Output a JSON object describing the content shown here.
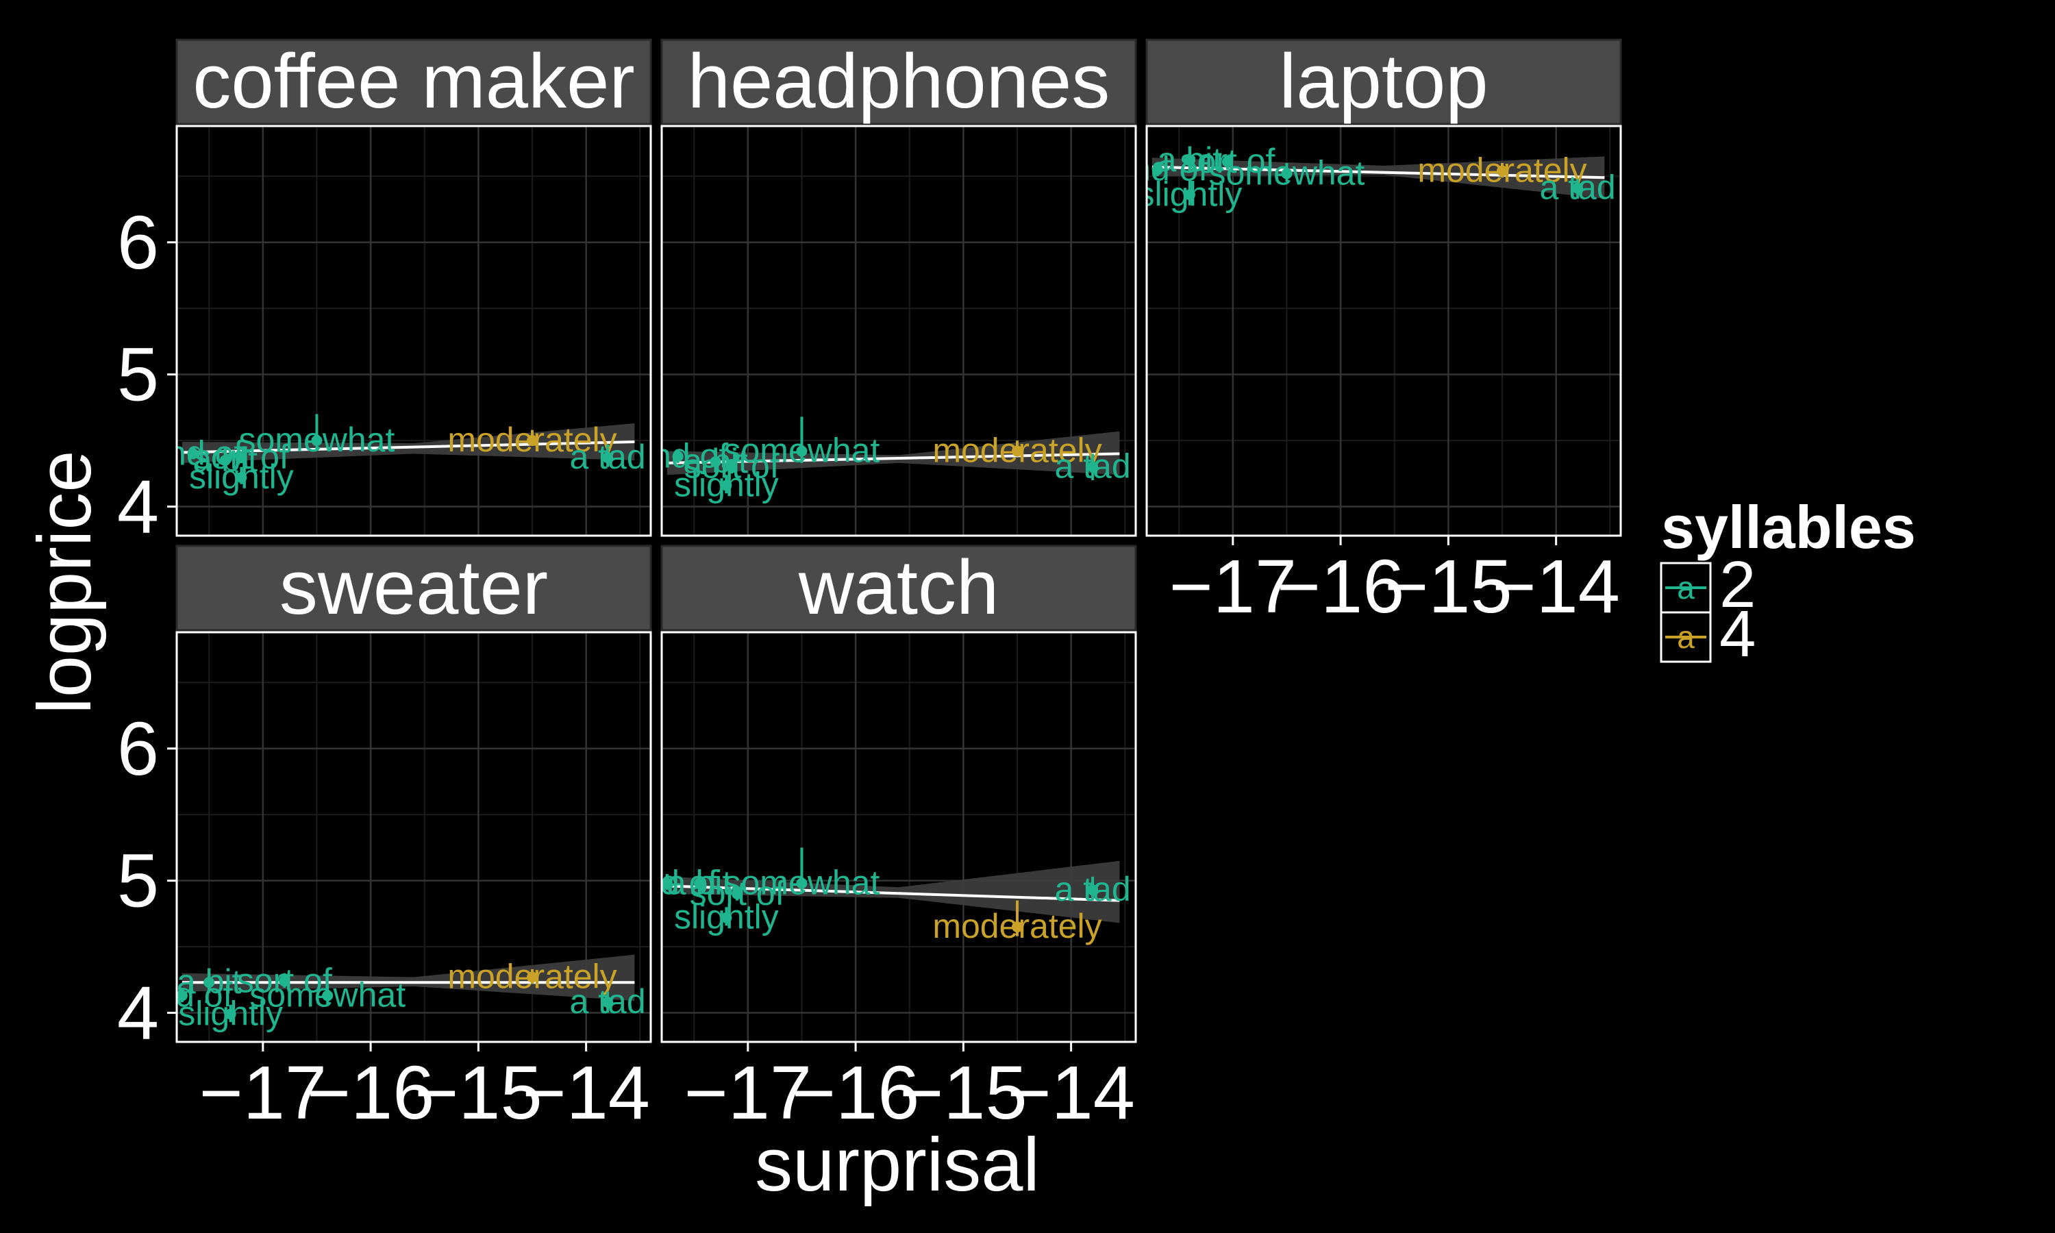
{
  "chart_data": {
    "type": "scatter",
    "xlabel": "surprisal",
    "ylabel": "logprice",
    "x_ticks": [
      -17,
      -16,
      -15,
      -14
    ],
    "y_ticks": [
      4,
      5,
      6
    ],
    "xlim": [
      -17.8,
      -13.4
    ],
    "ylim": [
      3.78,
      6.88
    ],
    "grid": true,
    "legend": {
      "title": "syllables",
      "position": "right",
      "glyph": "a",
      "entries": [
        {
          "label": "2",
          "color": "#1fb58f"
        },
        {
          "label": "4",
          "color": "#c9a227"
        }
      ]
    },
    "colors": {
      "fit_line": "#ffffff",
      "ribbon": "#3c3c3c",
      "strip": "#4a4a4a",
      "panel_border": "#ffffff",
      "background": "#000000"
    },
    "panels": [
      {
        "title": "coffee maker",
        "fit": [
          [
            -17.75,
            4.41
          ],
          [
            -13.55,
            4.49
          ]
        ],
        "ribbon": [
          [
            -17.75,
            4.33,
            4.49
          ],
          [
            -15.6,
            4.4,
            4.48
          ],
          [
            -13.55,
            4.35,
            4.63
          ]
        ],
        "points": [
          {
            "label": "a bit",
            "syllables": "2",
            "x": -17.35,
            "y": 4.35,
            "dy": 0,
            "err": [
              4.29,
              4.41
            ]
          },
          {
            "label": "kind of",
            "syllables": "2",
            "x": -17.65,
            "y": 4.4,
            "dy": 0,
            "err": [
              4.36,
              4.45
            ]
          },
          {
            "label": "sort of",
            "syllables": "2",
            "x": -17.2,
            "y": 4.37,
            "dy": 0,
            "err": [
              4.33,
              4.42
            ]
          },
          {
            "label": "slightly",
            "syllables": "2",
            "x": -17.2,
            "y": 4.22,
            "dy": 0,
            "err": [
              4.17,
              4.3
            ]
          },
          {
            "label": "somewhat",
            "syllables": "2",
            "x": -16.5,
            "y": 4.5,
            "dy": 0,
            "err": [
              4.43,
              4.7
            ]
          },
          {
            "label": "moderately",
            "syllables": "4",
            "x": -14.5,
            "y": 4.5,
            "dy": 0,
            "err": [
              4.46,
              4.58
            ]
          },
          {
            "label": "a tad",
            "syllables": "2",
            "x": -13.8,
            "y": 4.37,
            "dy": 0,
            "err": [
              4.3,
              4.47
            ]
          }
        ]
      },
      {
        "title": "headphones",
        "fit": [
          [
            -17.75,
            4.33
          ],
          [
            -13.55,
            4.4
          ]
        ],
        "ribbon": [
          [
            -17.75,
            4.24,
            4.42
          ],
          [
            -15.6,
            4.33,
            4.39
          ],
          [
            -13.55,
            4.24,
            4.57
          ]
        ],
        "points": [
          {
            "label": "a bit",
            "syllables": "2",
            "x": -17.3,
            "y": 4.34,
            "dy": 0,
            "err": [
              4.29,
              4.4
            ]
          },
          {
            "label": "kind of",
            "syllables": "2",
            "x": -17.65,
            "y": 4.38,
            "dy": 0,
            "err": [
              4.33,
              4.43
            ]
          },
          {
            "label": "sort of",
            "syllables": "2",
            "x": -17.15,
            "y": 4.3,
            "dy": 0,
            "err": [
              4.25,
              4.36
            ]
          },
          {
            "label": "slightly",
            "syllables": "2",
            "x": -17.2,
            "y": 4.16,
            "dy": 0,
            "err": [
              4.1,
              4.24
            ]
          },
          {
            "label": "somewhat",
            "syllables": "2",
            "x": -16.5,
            "y": 4.42,
            "dy": 0,
            "err": [
              4.33,
              4.68
            ]
          },
          {
            "label": "moderately",
            "syllables": "4",
            "x": -14.5,
            "y": 4.42,
            "dy": 0,
            "err": [
              4.38,
              4.5
            ]
          },
          {
            "label": "a tad",
            "syllables": "2",
            "x": -13.8,
            "y": 4.3,
            "dy": 0,
            "err": [
              4.2,
              4.4
            ]
          }
        ]
      },
      {
        "title": "laptop",
        "fit": [
          [
            -17.75,
            6.57
          ],
          [
            -13.55,
            6.49
          ]
        ],
        "ribbon": [
          [
            -17.75,
            6.5,
            6.64
          ],
          [
            -15.6,
            6.51,
            6.58
          ],
          [
            -13.55,
            6.33,
            6.65
          ]
        ],
        "points": [
          {
            "label": "a bit",
            "syllables": "2",
            "x": -17.4,
            "y": 6.62,
            "dy": 0,
            "err": [
              6.57,
              6.67
            ]
          },
          {
            "label": "sort of",
            "syllables": "2",
            "x": -17.05,
            "y": 6.61,
            "dy": 0,
            "err": [
              6.55,
              6.66
            ]
          },
          {
            "label": "kind of",
            "syllables": "2",
            "x": -17.7,
            "y": 6.55,
            "dy": 0,
            "err": [
              6.5,
              6.6
            ]
          },
          {
            "label": "somewhat",
            "syllables": "2",
            "x": -16.5,
            "y": 6.52,
            "dy": 0,
            "err": [
              6.46,
              6.6
            ]
          },
          {
            "label": "slightly",
            "syllables": "2",
            "x": -17.4,
            "y": 6.36,
            "dy": 0,
            "err": [
              6.28,
              6.48
            ]
          },
          {
            "label": "moderately",
            "syllables": "4",
            "x": -14.5,
            "y": 6.54,
            "dy": 0,
            "err": [
              6.49,
              6.6
            ]
          },
          {
            "label": "a tad",
            "syllables": "2",
            "x": -13.8,
            "y": 6.41,
            "dy": 0,
            "err": [
              6.33,
              6.48
            ]
          }
        ]
      },
      {
        "title": "sweater",
        "fit": [
          [
            -17.75,
            4.23
          ],
          [
            -13.55,
            4.23
          ]
        ],
        "ribbon": [
          [
            -17.75,
            4.16,
            4.3
          ],
          [
            -15.6,
            4.2,
            4.27
          ],
          [
            -13.55,
            4.09,
            4.44
          ]
        ],
        "points": [
          {
            "label": "a bit",
            "syllables": "2",
            "x": -17.5,
            "y": 4.23,
            "dy": 0,
            "err": [
              4.18,
              4.3
            ]
          },
          {
            "label": "sort of",
            "syllables": "2",
            "x": -16.8,
            "y": 4.24,
            "dy": 0,
            "err": [
              4.19,
              4.3
            ]
          },
          {
            "label": "kind of",
            "syllables": "2",
            "x": -17.75,
            "y": 4.13,
            "dy": 0,
            "err": [
              4.08,
              4.19
            ]
          },
          {
            "label": "somewhat",
            "syllables": "2",
            "x": -16.4,
            "y": 4.13,
            "dy": 0,
            "err": [
              4.06,
              4.21
            ]
          },
          {
            "label": "slightly",
            "syllables": "2",
            "x": -17.3,
            "y": 3.99,
            "dy": 0,
            "err": [
              3.93,
              4.06
            ]
          },
          {
            "label": "moderately",
            "syllables": "4",
            "x": -14.5,
            "y": 4.27,
            "dy": 0,
            "err": [
              4.22,
              4.33
            ]
          },
          {
            "label": "a tad",
            "syllables": "2",
            "x": -13.8,
            "y": 4.08,
            "dy": 0,
            "err": [
              4.0,
              4.16
            ]
          }
        ]
      },
      {
        "title": "watch",
        "fit": [
          [
            -17.75,
            4.96
          ],
          [
            -13.55,
            4.85
          ]
        ],
        "ribbon": [
          [
            -17.75,
            4.9,
            5.03
          ],
          [
            -15.6,
            4.87,
            4.95
          ],
          [
            -13.55,
            4.68,
            5.15
          ]
        ],
        "points": [
          {
            "label": "kind of",
            "syllables": "2",
            "x": -17.75,
            "y": 4.98,
            "dy": 0,
            "err": [
              4.93,
              5.05
            ]
          },
          {
            "label": "a bit",
            "syllables": "2",
            "x": -17.45,
            "y": 4.98,
            "dy": 0,
            "err": [
              4.92,
              5.03
            ]
          },
          {
            "label": "somewhat",
            "syllables": "2",
            "x": -16.5,
            "y": 4.98,
            "dy": 0,
            "err": [
              4.92,
              5.25
            ]
          },
          {
            "label": "sort of",
            "syllables": "2",
            "x": -17.1,
            "y": 4.9,
            "dy": 0,
            "err": [
              4.85,
              4.96
            ]
          },
          {
            "label": "slightly",
            "syllables": "2",
            "x": -17.2,
            "y": 4.72,
            "dy": 0,
            "err": [
              4.66,
              4.8
            ]
          },
          {
            "label": "moderately",
            "syllables": "4",
            "x": -14.5,
            "y": 4.65,
            "dy": 0,
            "err": [
              4.58,
              4.85
            ]
          },
          {
            "label": "a tad",
            "syllables": "2",
            "x": -13.8,
            "y": 4.93,
            "dy": 0,
            "err": [
              4.85,
              5.03
            ]
          }
        ]
      }
    ]
  }
}
